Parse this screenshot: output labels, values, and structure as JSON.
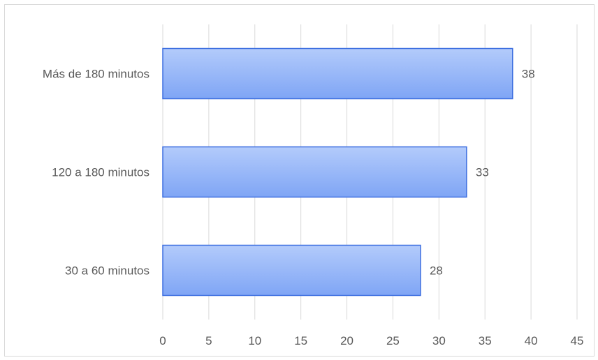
{
  "chart_data": {
    "type": "bar",
    "orientation": "horizontal",
    "categories": [
      "Más de 180 minutos",
      "120 a 180 minutos",
      "30 a 60  minutos"
    ],
    "values": [
      38,
      33,
      28
    ],
    "data_labels": [
      "38",
      "33",
      "28"
    ],
    "xlim": [
      0,
      45
    ],
    "x_ticks": [
      0,
      5,
      10,
      15,
      20,
      25,
      30,
      35,
      40,
      45
    ],
    "x_tick_labels": [
      "0",
      "5",
      "10",
      "15",
      "20",
      "25",
      "30",
      "35",
      "40",
      "45"
    ],
    "grid": "vertical",
    "legend": "none",
    "colors": {
      "bar_top": "#b3cbfb",
      "bar_bottom": "#7fa5f5",
      "bar_border": "#3d6fe0",
      "grid": "#d9d9d9",
      "text": "#595959"
    }
  }
}
